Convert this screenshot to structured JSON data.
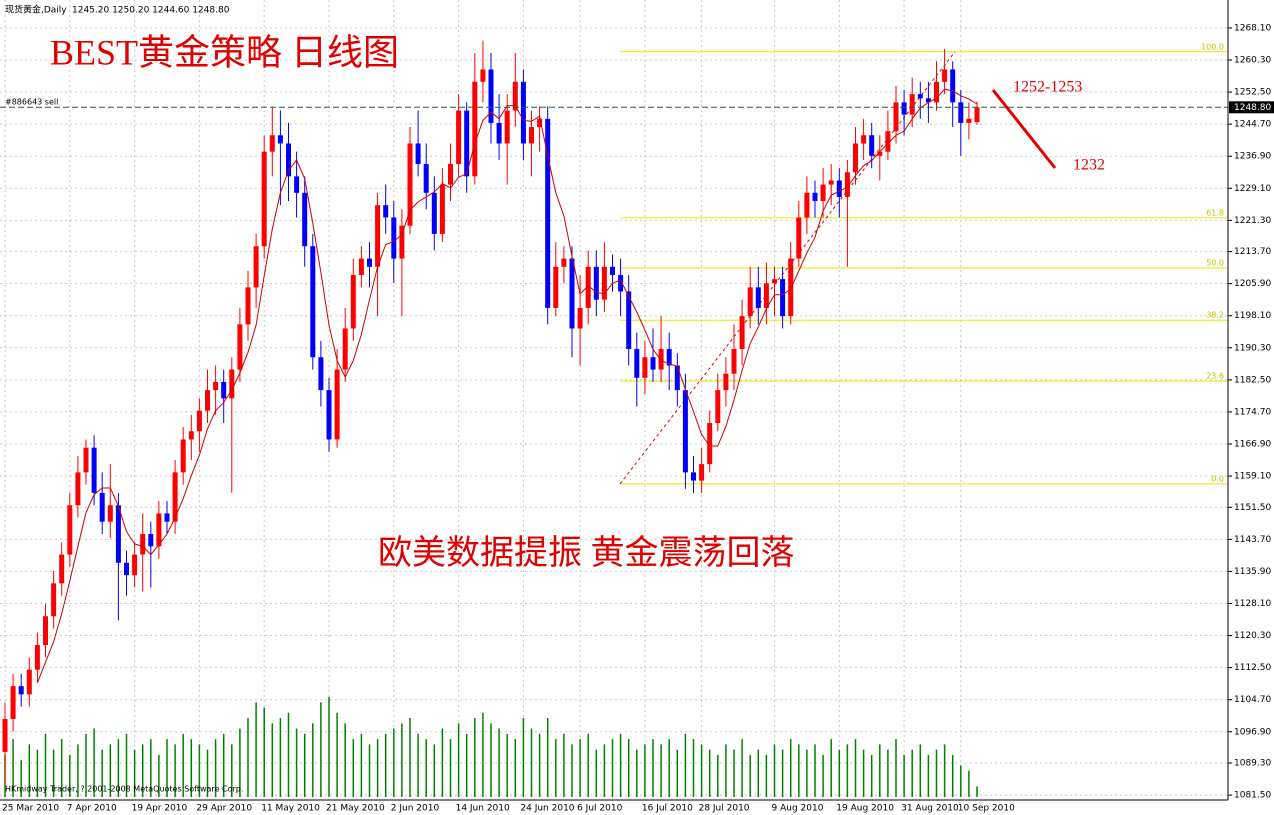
{
  "chart_data": {
    "type": "candlestick",
    "header": {
      "symbol": "现货黄金,Daily",
      "ohlc": "1245.20 1250.20 1244.60 1248.80"
    },
    "order_label": "#886643 sell",
    "footer": "HKmidway Trader, ? 2001-2008 MetaQuotes Software Corp.",
    "annotations": {
      "title": "BEST黄金策略  日线图",
      "note": "欧美数据提振   黄金震荡回落",
      "target_high": "1252-1253",
      "target_low": "1232"
    },
    "up_color": "#ff0000",
    "down_color": "#0000ff",
    "ma_color": "#cc0000",
    "volume_color": "#008000",
    "fibo_color": "#e6e600",
    "grid": true,
    "ylim": [
      1080.3,
      1274.9
    ],
    "yticks": [
      {
        "value": 1268.1,
        "label": "1268.10"
      },
      {
        "value": 1260.3,
        "label": "1260.30"
      },
      {
        "value": 1252.5,
        "label": "1252.50"
      },
      {
        "value": 1244.7,
        "label": "1244.70"
      },
      {
        "value": 1236.9,
        "label": "1236.90"
      },
      {
        "value": 1229.1,
        "label": "1229.10"
      },
      {
        "value": 1221.3,
        "label": "1221.30"
      },
      {
        "value": 1213.7,
        "label": "1213.70"
      },
      {
        "value": 1205.9,
        "label": "1205.90"
      },
      {
        "value": 1198.1,
        "label": "1198.10"
      },
      {
        "value": 1190.3,
        "label": "1190.30"
      },
      {
        "value": 1182.5,
        "label": "1182.50"
      },
      {
        "value": 1174.7,
        "label": "1174.70"
      },
      {
        "value": 1166.9,
        "label": "1166.90"
      },
      {
        "value": 1159.1,
        "label": "1159.10"
      },
      {
        "value": 1151.5,
        "label": "1151.50"
      },
      {
        "value": 1143.7,
        "label": "1143.70"
      },
      {
        "value": 1135.9,
        "label": "1135.90"
      },
      {
        "value": 1128.1,
        "label": "1128.10"
      },
      {
        "value": 1120.3,
        "label": "1120.30"
      },
      {
        "value": 1112.5,
        "label": "1112.50"
      },
      {
        "value": 1104.7,
        "label": "1104.70"
      },
      {
        "value": 1096.9,
        "label": "1096.90"
      },
      {
        "value": 1089.3,
        "label": "1089.30"
      },
      {
        "value": 1081.5,
        "label": "1081.50"
      }
    ],
    "current_price": {
      "value": 1248.8,
      "label": "1248.80"
    },
    "fibo": [
      {
        "level": {
          "value": 100,
          "label": "100.0"
        },
        "price": 1262.3
      },
      {
        "level": {
          "value": 61.8,
          "label": "61.8"
        },
        "price": 1221.9
      },
      {
        "level": {
          "value": 50,
          "label": "50.0"
        },
        "price": 1209.7
      },
      {
        "level": {
          "value": 38.2,
          "label": "38.2"
        },
        "price": 1197.0
      },
      {
        "level": {
          "value": 23.6,
          "label": "23.6"
        },
        "price": 1182.2
      },
      {
        "level": {
          "value": 0,
          "label": "0.0"
        },
        "price": 1157.2
      }
    ],
    "categories": [
      "25 Mar 2010",
      null,
      null,
      null,
      null,
      null,
      null,
      null,
      "7 Apr 2010",
      null,
      null,
      null,
      null,
      null,
      null,
      null,
      "19 Apr 2010",
      null,
      null,
      null,
      null,
      null,
      null,
      null,
      "29 Apr 2010",
      null,
      null,
      null,
      null,
      null,
      null,
      null,
      "11 May 2010",
      null,
      null,
      null,
      null,
      null,
      null,
      null,
      "21 May 2010",
      null,
      null,
      null,
      null,
      null,
      null,
      null,
      "2 Jun 2010",
      null,
      null,
      null,
      null,
      null,
      null,
      null,
      "14 Jun 2010",
      null,
      null,
      null,
      null,
      null,
      null,
      null,
      "24 Jun 2010",
      null,
      null,
      null,
      null,
      null,
      null,
      "6 Jul 2010",
      null,
      null,
      null,
      null,
      null,
      null,
      null,
      "16 Jul 2010",
      null,
      null,
      null,
      null,
      null,
      null,
      "28 Jul 2010",
      null,
      null,
      null,
      null,
      null,
      null,
      null,
      null,
      "9 Aug 2010",
      null,
      null,
      null,
      null,
      null,
      null,
      null,
      "19 Aug 2010",
      null,
      null,
      null,
      null,
      null,
      null,
      null,
      "31 Aug 2010",
      null,
      null,
      null,
      null,
      null,
      null,
      "10 Sep 2010",
      null,
      null
    ],
    "open": [
      1092,
      1100,
      1108,
      1106,
      1112,
      1118,
      1125,
      1133,
      1140,
      1152,
      1160,
      1166,
      1155,
      1148,
      1152,
      1138,
      1135,
      1140,
      1145,
      1142,
      1150,
      1148,
      1160,
      1168,
      1170,
      1175,
      1180,
      1182,
      1178,
      1185,
      1196,
      1205,
      1215,
      1238,
      1242,
      1240,
      1232,
      1228,
      1215,
      1188,
      1180,
      1168,
      1185,
      1195,
      1208,
      1212,
      1210,
      1225,
      1222,
      1212,
      1220,
      1240,
      1235,
      1228,
      1218,
      1230,
      1235,
      1248,
      1232,
      1255,
      1258,
      1245,
      1240,
      1248,
      1255,
      1240,
      1244,
      1246,
      1200,
      1210,
      1212,
      1195,
      1200,
      1210,
      1202,
      1210,
      1208,
      1204,
      1190,
      1183,
      1188,
      1185,
      1190,
      1186,
      1180,
      1160,
      1158,
      1162,
      1172,
      1180,
      1184,
      1190,
      1198,
      1205,
      1200,
      1206,
      1207,
      1198,
      1212,
      1222,
      1228,
      1226,
      1230,
      1231,
      1227,
      1233,
      1240,
      1242,
      1237,
      1238,
      1243,
      1250,
      1247,
      1252,
      1251,
      1250,
      1255,
      1258,
      1250,
      1245,
      1245.2
    ],
    "high": [
      1104,
      1111,
      1111,
      1115,
      1121,
      1128,
      1136,
      1143,
      1155,
      1164,
      1168,
      1169,
      1160,
      1162,
      1155,
      1141,
      1143,
      1150,
      1148,
      1153,
      1153,
      1163,
      1171,
      1174,
      1178,
      1185,
      1186,
      1185,
      1188,
      1200,
      1209,
      1218,
      1242,
      1249,
      1248,
      1245,
      1238,
      1232,
      1218,
      1192,
      1183,
      1190,
      1200,
      1212,
      1215,
      1216,
      1228,
      1230,
      1226,
      1224,
      1244,
      1248,
      1240,
      1232,
      1234,
      1240,
      1252,
      1250,
      1262,
      1265,
      1262,
      1252,
      1252,
      1262,
      1258,
      1248,
      1249,
      1249,
      1216,
      1215,
      1215,
      1208,
      1214,
      1214,
      1216,
      1213,
      1212,
      1208,
      1194,
      1192,
      1195,
      1198,
      1194,
      1189,
      1184,
      1164,
      1166,
      1175,
      1184,
      1188,
      1196,
      1202,
      1210,
      1210,
      1211,
      1210,
      1210,
      1216,
      1226,
      1232,
      1231,
      1234,
      1235,
      1234,
      1236,
      1244,
      1246,
      1245,
      1242,
      1248,
      1254,
      1253,
      1256,
      1255,
      1255,
      1260,
      1263,
      1260,
      1253,
      1250,
      1250.2
    ],
    "low": [
      1084,
      1097,
      1103,
      1103,
      1109,
      1115,
      1122,
      1130,
      1137,
      1149,
      1157,
      1152,
      1145,
      1144,
      1124,
      1130,
      1132,
      1131,
      1132,
      1139,
      1145,
      1145,
      1157,
      1163,
      1165,
      1172,
      1174,
      1172,
      1155,
      1182,
      1192,
      1200,
      1212,
      1232,
      1225,
      1226,
      1222,
      1210,
      1185,
      1176,
      1165,
      1166,
      1182,
      1192,
      1205,
      1205,
      1198,
      1218,
      1206,
      1198,
      1218,
      1232,
      1224,
      1214,
      1216,
      1226,
      1232,
      1228,
      1230,
      1250,
      1240,
      1236,
      1230,
      1244,
      1236,
      1232,
      1238,
      1196,
      1198,
      1206,
      1188,
      1186,
      1196,
      1198,
      1199,
      1204,
      1198,
      1186,
      1176,
      1179,
      1182,
      1182,
      1180,
      1176,
      1156,
      1155,
      1155,
      1160,
      1170,
      1176,
      1180,
      1186,
      1195,
      1196,
      1196,
      1198,
      1195,
      1196,
      1210,
      1218,
      1222,
      1222,
      1225,
      1222,
      1210,
      1230,
      1236,
      1234,
      1231,
      1236,
      1240,
      1242,
      1244,
      1246,
      1245,
      1248,
      1252,
      1244,
      1237,
      1241,
      1244.6
    ],
    "close": [
      1100,
      1108,
      1106,
      1112,
      1118,
      1125,
      1133,
      1140,
      1152,
      1160,
      1166,
      1155,
      1148,
      1152,
      1138,
      1135,
      1140,
      1145,
      1142,
      1150,
      1148,
      1160,
      1168,
      1170,
      1175,
      1180,
      1182,
      1178,
      1185,
      1196,
      1205,
      1215,
      1238,
      1242,
      1240,
      1232,
      1228,
      1215,
      1188,
      1180,
      1168,
      1185,
      1195,
      1208,
      1212,
      1210,
      1225,
      1222,
      1212,
      1220,
      1240,
      1235,
      1228,
      1218,
      1230,
      1235,
      1248,
      1232,
      1255,
      1258,
      1245,
      1240,
      1248,
      1255,
      1240,
      1244,
      1246,
      1200,
      1210,
      1212,
      1195,
      1200,
      1210,
      1202,
      1210,
      1208,
      1204,
      1190,
      1183,
      1188,
      1185,
      1190,
      1186,
      1180,
      1160,
      1158,
      1162,
      1172,
      1180,
      1184,
      1190,
      1198,
      1205,
      1200,
      1206,
      1207,
      1198,
      1212,
      1222,
      1228,
      1226,
      1230,
      1231,
      1227,
      1233,
      1240,
      1242,
      1237,
      1238,
      1243,
      1250,
      1247,
      1252,
      1251,
      1250,
      1255,
      1258,
      1250,
      1245,
      1246,
      1248.8
    ],
    "ma": [
      null,
      null,
      null,
      null,
      1108.8,
      1113.8,
      1118.8,
      1125.6,
      1133.6,
      1142,
      1150.2,
      1154.6,
      1156.2,
      1156.2,
      1151.8,
      1145.6,
      1142.6,
      1142,
      1140,
      1142.4,
      1145,
      1149,
      1153.6,
      1159.2,
      1164.2,
      1170.6,
      1175,
      1177,
      1180,
      1184.2,
      1189.2,
      1195.8,
      1207.8,
      1219.2,
      1228,
      1233.4,
      1236,
      1231.4,
      1220.6,
      1208.6,
      1195.8,
      1187.2,
      1183.2,
      1187.2,
      1193.6,
      1202,
      1210,
      1215.4,
      1216.2,
      1217.8,
      1223.8,
      1225.8,
      1227,
      1228.2,
      1230.2,
      1229.2,
      1231.8,
      1232.6,
      1240,
      1245.6,
      1247.6,
      1246,
      1249.2,
      1249.2,
      1245.6,
      1245.4,
      1246.6,
      1237,
      1228,
      1222.4,
      1212.6,
      1203.4,
      1205.4,
      1203.8,
      1203.4,
      1206,
      1206.8,
      1202.8,
      1199,
      1194.6,
      1190,
      1187.2,
      1186.4,
      1185.8,
      1180.2,
      1174.8,
      1169.2,
      1166.4,
      1166.4,
      1171.2,
      1177.6,
      1184.8,
      1191.4,
      1195.4,
      1199.8,
      1203.2,
      1203.2,
      1204.6,
      1209,
      1213.4,
      1217.2,
      1223.6,
      1227.4,
      1228.4,
      1229.4,
      1232.2,
      1234.6,
      1235.8,
      1238,
      1240,
      1242,
      1243,
      1246,
      1248.6,
      1250,
      1251,
      1253.2,
      1252.8,
      1251.6,
      1250.8,
      1249.6
    ],
    "volume": [
      40,
      55,
      35,
      50,
      45,
      60,
      45,
      55,
      40,
      50,
      60,
      65,
      45,
      50,
      55,
      60,
      45,
      50,
      55,
      40,
      55,
      50,
      60,
      55,
      50,
      45,
      55,
      60,
      50,
      65,
      75,
      90,
      85,
      70,
      75,
      80,
      65,
      60,
      70,
      90,
      95,
      80,
      70,
      55,
      60,
      50,
      55,
      60,
      65,
      70,
      75,
      60,
      55,
      50,
      65,
      55,
      70,
      60,
      75,
      80,
      70,
      65,
      60,
      55,
      75,
      65,
      60,
      75,
      55,
      60,
      50,
      55,
      60,
      45,
      50,
      55,
      60,
      55,
      45,
      50,
      55,
      50,
      55,
      45,
      60,
      55,
      50,
      45,
      40,
      50,
      45,
      55,
      40,
      45,
      40,
      50,
      45,
      55,
      50,
      45,
      50,
      40,
      55,
      45,
      50,
      55,
      45,
      40,
      50,
      45,
      55,
      40,
      45,
      50,
      40,
      45,
      50,
      40,
      30,
      25,
      10
    ]
  }
}
